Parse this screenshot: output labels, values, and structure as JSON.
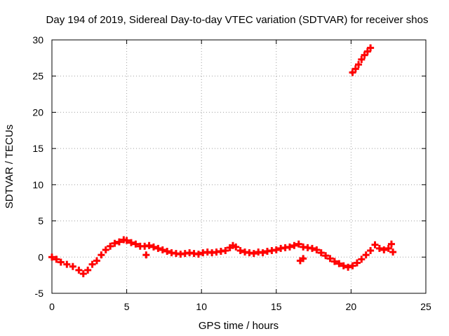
{
  "chart_data": {
    "type": "scatter",
    "title": "Day 194 of 2019, Sidereal Day-to-day VTEC variation (SDTVAR) for receiver shos",
    "xlabel": "GPS time / hours",
    "ylabel": "SDTVAR / TECUs",
    "xlim": [
      0,
      25
    ],
    "ylim": [
      -5,
      30
    ],
    "xticks": [
      0,
      5,
      10,
      15,
      20,
      25
    ],
    "yticks": [
      -5,
      0,
      5,
      10,
      15,
      20,
      25,
      30
    ],
    "grid": true,
    "series": [
      {
        "name": "SDTVAR",
        "color": "#ff0000",
        "marker": "plus",
        "x": [
          0.0,
          0.3,
          0.6,
          1.0,
          1.4,
          1.8,
          2.1,
          2.4,
          2.7,
          3.0,
          3.3,
          3.6,
          3.9,
          4.2,
          4.5,
          4.8,
          5.0,
          5.3,
          5.6,
          5.9,
          6.2,
          6.5,
          6.8,
          7.1,
          7.4,
          7.7,
          8.0,
          8.3,
          8.6,
          8.9,
          9.2,
          9.5,
          9.8,
          10.1,
          10.4,
          10.7,
          11.0,
          11.3,
          11.6,
          11.9,
          12.1,
          12.3,
          12.6,
          12.9,
          13.2,
          13.5,
          13.8,
          14.1,
          14.4,
          14.7,
          15.0,
          15.3,
          15.6,
          15.9,
          16.2,
          16.5,
          16.8,
          17.1,
          17.4,
          17.7,
          18.0,
          18.3,
          18.6,
          18.9,
          19.2,
          19.5,
          19.8,
          20.1,
          20.4,
          20.7,
          21.0,
          21.3,
          20.1,
          20.3,
          20.5,
          20.7,
          20.9,
          21.1,
          21.3,
          21.6,
          21.9,
          22.2,
          22.5,
          22.8,
          6.3,
          16.6,
          16.8,
          22.7
        ],
        "y": [
          0.0,
          -0.3,
          -0.7,
          -1.0,
          -1.3,
          -1.8,
          -2.3,
          -1.8,
          -1.0,
          -0.5,
          0.3,
          1.0,
          1.5,
          1.9,
          2.1,
          2.4,
          2.3,
          2.0,
          1.8,
          1.5,
          1.5,
          1.6,
          1.4,
          1.2,
          1.0,
          0.8,
          0.6,
          0.5,
          0.4,
          0.5,
          0.6,
          0.5,
          0.4,
          0.6,
          0.7,
          0.6,
          0.7,
          0.8,
          0.9,
          1.3,
          1.6,
          1.4,
          0.9,
          0.7,
          0.6,
          0.5,
          0.7,
          0.6,
          0.8,
          0.9,
          1.0,
          1.2,
          1.3,
          1.4,
          1.6,
          1.8,
          1.4,
          1.3,
          1.2,
          1.0,
          0.6,
          0.2,
          -0.2,
          -0.6,
          -0.9,
          -1.2,
          -1.4,
          -1.2,
          -0.8,
          -0.3,
          0.3,
          0.9,
          25.5,
          26.0,
          26.6,
          27.3,
          27.9,
          28.4,
          28.9,
          1.7,
          1.2,
          1.0,
          1.2,
          0.7,
          0.3,
          -0.5,
          -0.2,
          1.8
        ]
      }
    ]
  }
}
